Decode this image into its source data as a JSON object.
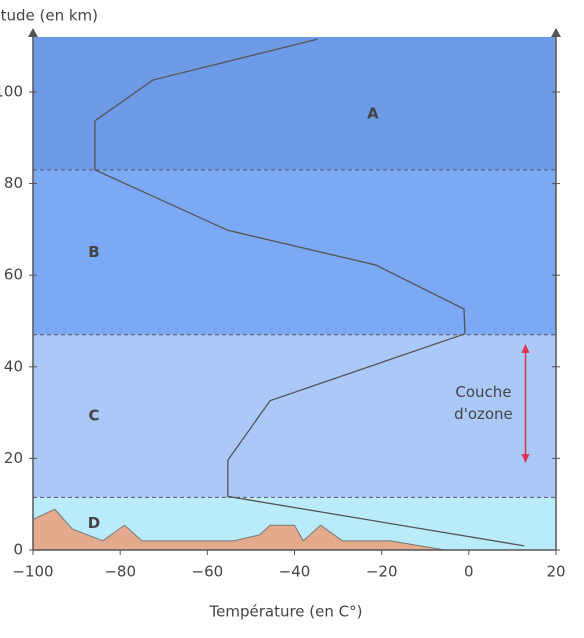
{
  "chart_data": {
    "type": "line",
    "xlabel": "Température (en C°)",
    "ylabel": "Altitude (en km)",
    "xlim": [
      -100,
      20
    ],
    "ylim": [
      0,
      112
    ],
    "xticks": [
      {
        "value": -100,
        "label": "−100"
      },
      {
        "value": -80,
        "label": "−80"
      },
      {
        "value": -60,
        "label": "−60"
      },
      {
        "value": -40,
        "label": "−40"
      },
      {
        "value": -20,
        "label": "−20"
      },
      0,
      20
    ],
    "yticks": [
      0,
      20,
      40,
      60,
      80,
      100
    ],
    "layers": [
      {
        "name": "D",
        "bottom": 0,
        "top": 11.5,
        "color": "#b9ebfb"
      },
      {
        "name": "C",
        "bottom": 11.5,
        "top": 47,
        "color": "#aac8f8"
      },
      {
        "name": "B",
        "bottom": 47,
        "top": 83,
        "color": "#7ba9f5"
      },
      {
        "name": "A",
        "bottom": 83,
        "top": 112,
        "color": "#6d9be8"
      }
    ],
    "series": [
      {
        "name": "Température",
        "color": "#555555",
        "x": [
          -34.8,
          -72.5,
          -85.8,
          -85.8,
          -55.3,
          -21.3,
          -1.1,
          -0.9,
          -45.6,
          -55.3,
          -55.3,
          12.7
        ],
        "values": [
          111.5,
          102.6,
          93.7,
          83,
          69.8,
          62.2,
          52.6,
          47.2,
          32.6,
          19.6,
          11.7,
          0.9
        ]
      }
    ],
    "terrain": {
      "color": "#e4aa8d",
      "x": [
        -100,
        -95,
        -91,
        -84,
        -79,
        -75,
        -54,
        -48,
        -45.6,
        -40,
        -38,
        -34,
        -29,
        -18,
        -5.5
      ],
      "values": [
        6.7,
        8.9,
        4.6,
        2,
        5.4,
        2,
        2,
        3.3,
        5.4,
        5.4,
        2,
        5.4,
        2,
        2,
        0
      ]
    },
    "ozone": {
      "label": [
        "Couche",
        "d'ozone"
      ],
      "range": [
        19,
        45
      ],
      "x": 13,
      "color": "#e0334f"
    }
  }
}
